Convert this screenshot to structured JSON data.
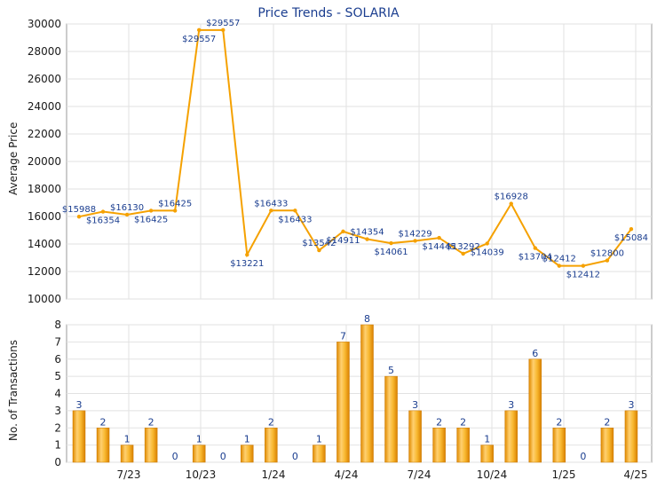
{
  "chart_data": [
    {
      "type": "line",
      "title": "Price Trends - SOLARIA",
      "ylabel": "Average Price",
      "ylim": [
        10000,
        30000
      ],
      "yticks": [
        10000,
        12000,
        14000,
        16000,
        18000,
        20000,
        22000,
        24000,
        26000,
        28000,
        30000
      ],
      "color": "#f5a100",
      "grid": true,
      "x": [
        1,
        2,
        3,
        4,
        5,
        6,
        7,
        8,
        9,
        10,
        11,
        12,
        13,
        14,
        15,
        16,
        17,
        18,
        19,
        20,
        21,
        22,
        23,
        24
      ],
      "values": [
        15988,
        16354,
        16130,
        16425,
        16425,
        29557,
        29557,
        13221,
        16433,
        16433,
        13542,
        14911,
        14354,
        14061,
        14229,
        14445,
        13292,
        14039,
        16928,
        13704,
        12412,
        12412,
        12800,
        15084
      ],
      "labels": [
        "$15988",
        "$16354",
        "$16130",
        "$16425",
        "$16425",
        "$29557",
        "$29557",
        "$13221",
        "$16433",
        "$16433",
        "$13542",
        "$14911",
        "$14354",
        "$14061",
        "$14229",
        "$14445",
        "$13292",
        "$14039",
        "$16928",
        "$13704",
        "$12412",
        "$12412",
        "$12800",
        "$15084"
      ]
    },
    {
      "type": "bar",
      "ylabel": "No. of Transactions",
      "ylim": [
        0,
        8
      ],
      "yticks": [
        0,
        1,
        2,
        3,
        4,
        5,
        6,
        7,
        8
      ],
      "color": "#f5a100",
      "grid": true,
      "values": [
        3,
        2,
        1,
        2,
        0,
        1,
        0,
        1,
        2,
        0,
        1,
        7,
        8,
        5,
        3,
        2,
        2,
        1,
        3,
        6,
        2,
        0,
        2,
        3
      ],
      "xtick_labels": [
        "7/23",
        "10/23",
        "1/24",
        "4/24",
        "7/24",
        "10/24",
        "1/25",
        "4/25"
      ]
    }
  ]
}
